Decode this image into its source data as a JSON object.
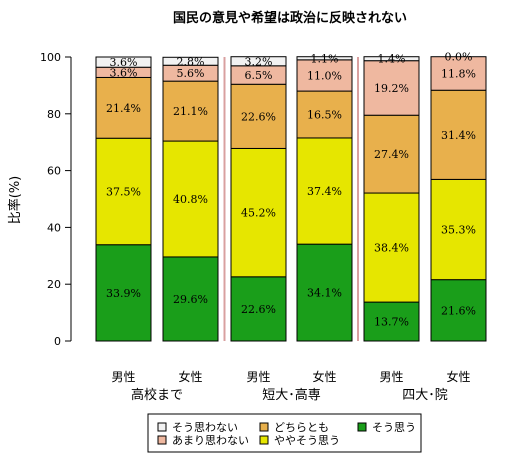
{
  "chart_data": {
    "type": "bar",
    "stacked": true,
    "title": "国民の意見や希望は政治に反映されない",
    "ylabel": "比率(%)",
    "ylim": [
      0,
      100
    ],
    "yticks": [
      "0",
      "20",
      "40",
      "60",
      "80",
      "100"
    ],
    "grid": false,
    "legend_position": "bottom",
    "groups": [
      "高校まで",
      "短大･高専",
      "四大･院"
    ],
    "categories": [
      "男性",
      "女性",
      "男性",
      "女性",
      "男性",
      "女性"
    ],
    "series": [
      {
        "name": "そう思う",
        "color": "#1a9e1a",
        "values": [
          33.9,
          29.6,
          22.6,
          34.1,
          13.7,
          21.6
        ],
        "labels": [
          "33.9%",
          "29.6%",
          "22.6%",
          "34.1%",
          "13.7%",
          "21.6%"
        ]
      },
      {
        "name": "ややそう思う",
        "color": "#e6e600",
        "values": [
          37.5,
          40.8,
          45.2,
          37.4,
          38.4,
          35.3
        ],
        "labels": [
          "37.5%",
          "40.8%",
          "45.2%",
          "37.4%",
          "38.4%",
          "35.3%"
        ]
      },
      {
        "name": "どちらとも",
        "color": "#e8b04c",
        "values": [
          21.4,
          21.1,
          22.6,
          16.5,
          27.4,
          31.4
        ],
        "labels": [
          "21.4%",
          "21.1%",
          "22.6%",
          "16.5%",
          "27.4%",
          "31.4%"
        ]
      },
      {
        "name": "あまり思わない",
        "color": "#efb8a0",
        "values": [
          3.6,
          5.6,
          6.5,
          11.0,
          19.2,
          11.8
        ],
        "labels": [
          "3.6%",
          "5.6%",
          "6.5%",
          "11.0%",
          "19.2%",
          "11.8%"
        ]
      },
      {
        "name": "そう思わない",
        "color": "#f2f2f2",
        "values": [
          3.6,
          2.8,
          3.2,
          1.1,
          1.4,
          0.0
        ],
        "labels": [
          "3.6%",
          "2.8%",
          "3.2%",
          "1.1%",
          "1.4%",
          "0.0%"
        ]
      }
    ],
    "legend_order": [
      "そう思わない",
      "どちらとも",
      "そう思う",
      "あまり思わない",
      "ややそう思う"
    ],
    "separator_color": "#d9a0a0"
  }
}
